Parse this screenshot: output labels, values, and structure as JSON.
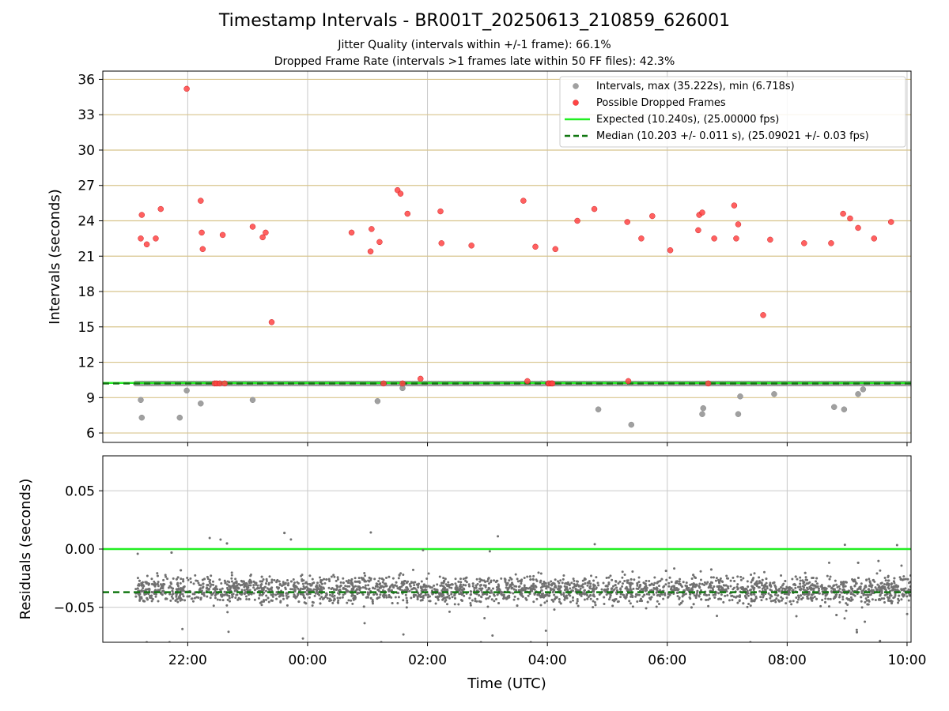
{
  "figure": {
    "title": "Timestamp Intervals - BR001T_20250613_210859_626001",
    "subtitle_1": "Jitter Quality (intervals within +/-1 frame): 66.1%",
    "subtitle_2": "Dropped Frame Rate (intervals >1 frames late within 50 FF files): 42.3%"
  },
  "colors": {
    "intervals": "#a0a0a0",
    "dropped": "#ff4444",
    "expected": "#22ee22",
    "median": "#117711",
    "residuals": "#707070",
    "gold_grid": "#d8c48c",
    "grey_grid": "#c8c8c8"
  },
  "chart_data": [
    {
      "type": "scatter",
      "panel": "top",
      "ylabel": "Intervals (seconds)",
      "xlim": [
        "20:35",
        "10:04"
      ],
      "ylim": [
        5.2,
        36.7
      ],
      "yticks": [
        6,
        9,
        12,
        15,
        18,
        21,
        24,
        27,
        30,
        33,
        36
      ],
      "ytick_labels": [
        "6",
        "9",
        "12",
        "15",
        "18",
        "21",
        "24",
        "27",
        "30",
        "33",
        "36"
      ],
      "grid": "on",
      "legend_position": "top-right",
      "legend": [
        "Intervals, max (35.222s), min (6.718s)",
        "Possible Dropped Frames",
        "Expected (10.240s), (25.00000 fps)",
        "Median (10.203 +/- 0.011 s), (25.09021 +/- 0.03 fps)"
      ],
      "series": [
        {
          "name": "Intervals, max (35.222s), min (6.718s)",
          "baseline": {
            "from": "21:08",
            "to": "10:04",
            "value": 10.2
          },
          "x": [
            "21:13",
            "21:14",
            "21:52",
            "21:59",
            "22:13",
            "23:05",
            "01:10",
            "01:35",
            "03:54",
            "04:51",
            "05:24",
            "06:35",
            "06:36",
            "07:11",
            "07:13",
            "07:47",
            "08:47",
            "08:57",
            "09:11",
            "09:16"
          ],
          "y": [
            8.8,
            7.3,
            7.3,
            9.6,
            8.5,
            8.8,
            8.7,
            9.8,
            10.2,
            8.0,
            6.7,
            7.6,
            8.1,
            7.6,
            9.1,
            9.3,
            8.2,
            8.0,
            9.3,
            9.7
          ]
        },
        {
          "name": "Possible Dropped Frames",
          "x": [
            "21:13",
            "21:14",
            "21:19",
            "21:28",
            "21:33",
            "21:59",
            "22:13",
            "22:14",
            "22:15",
            "22:27",
            "22:29",
            "22:32",
            "22:35",
            "22:37",
            "23:05",
            "23:15",
            "23:18",
            "23:24",
            "00:44",
            "01:03",
            "01:04",
            "01:12",
            "01:16",
            "01:30",
            "01:33",
            "01:35",
            "01:40",
            "01:53",
            "02:13",
            "02:14",
            "02:44",
            "03:36",
            "03:40",
            "03:48",
            "04:01",
            "04:02",
            "04:04",
            "04:05",
            "04:08",
            "04:30",
            "04:47",
            "05:20",
            "05:21",
            "05:34",
            "05:45",
            "06:03",
            "06:31",
            "06:32",
            "06:35",
            "06:41",
            "06:47",
            "07:07",
            "07:09",
            "07:11",
            "07:36",
            "07:43",
            "08:17",
            "08:44",
            "08:56",
            "09:03",
            "09:11",
            "09:27",
            "09:44"
          ],
          "y": [
            22.5,
            24.5,
            22.0,
            22.5,
            25.0,
            35.2,
            25.7,
            23.0,
            21.6,
            10.2,
            10.2,
            10.2,
            22.8,
            10.2,
            23.5,
            22.6,
            23.0,
            15.4,
            23.0,
            21.4,
            23.3,
            22.2,
            10.2,
            26.6,
            26.3,
            10.2,
            24.6,
            10.6,
            24.8,
            22.1,
            21.9,
            25.7,
            10.4,
            21.8,
            10.2,
            10.2,
            10.2,
            10.2,
            21.6,
            24.0,
            25.0,
            23.9,
            10.4,
            22.5,
            24.4,
            21.5,
            23.2,
            24.5,
            24.7,
            10.2,
            22.5,
            25.3,
            22.5,
            23.7,
            16.0,
            22.4,
            22.1,
            22.1,
            24.6,
            24.2,
            23.4,
            22.5,
            23.9
          ]
        },
        {
          "name": "Expected (10.240s), (25.00000 fps)",
          "value": 10.24
        },
        {
          "name": "Median (10.203 +/- 0.011 s), (25.09021 +/- 0.03 fps)",
          "value": 10.203
        }
      ]
    },
    {
      "type": "scatter",
      "panel": "bottom",
      "xlabel": "Time (UTC)",
      "ylabel": "Residuals (seconds)",
      "xlim": [
        "20:35",
        "10:04"
      ],
      "ylim": [
        -0.08,
        0.08
      ],
      "xticks": [
        "22:00",
        "00:00",
        "02:00",
        "04:00",
        "06:00",
        "08:00",
        "10:00"
      ],
      "yticks": [
        -0.05,
        0.0,
        0.05
      ],
      "ytick_labels": [
        "−0.05",
        "0.00",
        "0.05"
      ],
      "grid": "on",
      "series": [
        {
          "name": "Expected",
          "value": 0.0
        },
        {
          "name": "Median",
          "value": -0.037
        },
        {
          "name": "Residuals",
          "x_range": [
            "21:08",
            "10:04"
          ],
          "center": -0.035,
          "spread": 0.015,
          "min": -0.08,
          "max": 0.02
        }
      ]
    }
  ]
}
